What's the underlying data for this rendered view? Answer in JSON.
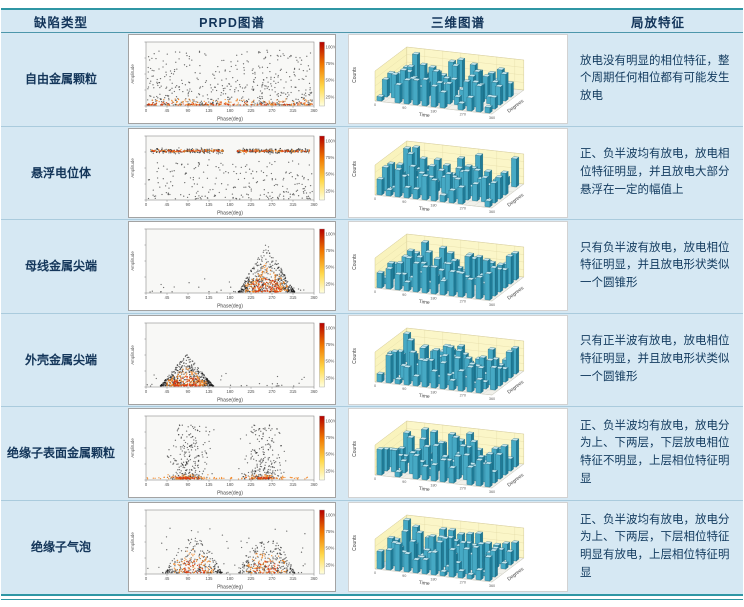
{
  "colors": {
    "table_bg": "#d6e8f3",
    "rule": "#2f96a4",
    "text": "#14365a",
    "bar_front": "#46a9c4",
    "bar_side": "#1f7b97",
    "bar_top": "#c5e7ef",
    "wall_yellow": "#f9f3bd",
    "heat_orange": "#f2821e",
    "heat_red": "#dd3a0e"
  },
  "table": {
    "headers": [
      "缺陷类型",
      "PRPD图谱",
      "三维图谱",
      "局放特征"
    ],
    "rows": [
      {
        "defect": "自由金属颗粒",
        "feature": "放电没有明显的相位特征，整个周期任何相位都有可能发生放电",
        "prpd_pattern": "uniform",
        "seed": 1
      },
      {
        "defect": "悬浮电位体",
        "feature": "正、负半波均有放电，放电相位特征明显，并且放电大部分悬浮在一定的幅值上",
        "prpd_pattern": "floating-bands",
        "seed": 2
      },
      {
        "defect": "母线金属尖端",
        "feature": "只有负半波有放电，放电相位特征明显，并且放电形状类似一个圆锥形",
        "prpd_pattern": "negative-cone",
        "seed": 3
      },
      {
        "defect": "外壳金属尖端",
        "feature": "只有正半波有放电，放电相位特征明显，并且放电形状类似一个圆锥形",
        "prpd_pattern": "positive-cone",
        "seed": 4
      },
      {
        "defect": "绝缘子表面金属颗粒",
        "feature": "正、负半波均有放电，放电分为上、下两层，下层放电相位特征不明显，上层相位特征明显",
        "prpd_pattern": "two-layer-clusters",
        "seed": 5
      },
      {
        "defect": "绝缘子气泡",
        "feature": "正、负半波均有放电，放电分为上、下两层，下层相位特征明显有放电，上层相位特征明显",
        "prpd_pattern": "two-humps",
        "seed": 6
      }
    ]
  },
  "prpd_axis": {
    "x_ticks": [
      "0",
      "45",
      "90",
      "135",
      "180",
      "225",
      "270",
      "315",
      "360"
    ],
    "x_label": "Phase(deg)",
    "y_label": "Amplitude",
    "colorbar_labels": [
      "100%",
      "75%",
      "50%",
      "25%"
    ]
  },
  "threed_axis": {
    "x_label": "Time",
    "y_label": "Degrees",
    "z_label": "Counts",
    "x_ticks": [
      "0",
      "90",
      "180",
      "270",
      "360"
    ]
  }
}
